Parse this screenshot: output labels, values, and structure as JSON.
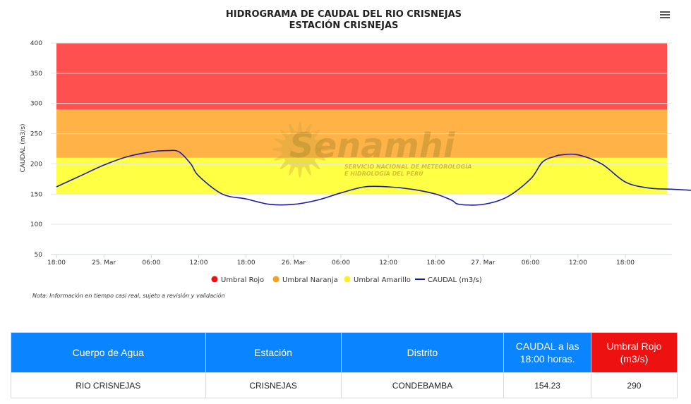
{
  "chart_data": {
    "type": "line",
    "title": "HIDROGRAMA DE CAUDAL DEL RIO CRISNEJAS",
    "subtitle": "ESTACIÓN CRISNEJAS",
    "ylabel": "CAUDAL (m3/s)",
    "xlabel": "",
    "ylim": [
      50,
      400
    ],
    "yticks": [
      50,
      100,
      150,
      200,
      250,
      300,
      350,
      400
    ],
    "x_tick_labels": [
      "18:00",
      "25. Mar",
      "06:00",
      "12:00",
      "18:00",
      "26. Mar",
      "06:00",
      "12:00",
      "18:00",
      "27. Mar",
      "06:00",
      "12:00",
      "18:00"
    ],
    "x_tick_hours": [
      0,
      6,
      12,
      18,
      24,
      30,
      36,
      42,
      48,
      54,
      60,
      66,
      72
    ],
    "xlim_hours": [
      0,
      78
    ],
    "grid": true,
    "legend_position": "bottom",
    "thresholds": [
      {
        "name": "Umbral Rojo",
        "from": 290,
        "to": 400,
        "color": "#ff5050"
      },
      {
        "name": "Umbral Naranja",
        "from": 210,
        "to": 290,
        "color": "#ffb347"
      },
      {
        "name": "Umbral Amarillo",
        "from": 150,
        "to": 210,
        "color": "#ffff44"
      }
    ],
    "legend": [
      {
        "name": "Umbral Rojo",
        "color": "#ee1111"
      },
      {
        "name": "Umbral Naranja",
        "color": "#f5a020"
      },
      {
        "name": "Umbral Amarillo",
        "color": "#ffee22"
      },
      {
        "name": "CAUDAL (m3/s)",
        "color": "#1a1aa8"
      }
    ],
    "series": [
      {
        "name": "CAUDAL (m3/s)",
        "color": "#1a1aa8",
        "x_hours": [
          0,
          3,
          6,
          9,
          12,
          14,
          15.5,
          17,
          18,
          21,
          24,
          27,
          30,
          33,
          36,
          39,
          42,
          45,
          48,
          50,
          51,
          54,
          57,
          60,
          61.5,
          63,
          64,
          66,
          69,
          72
        ],
        "values": [
          162,
          180,
          198,
          212,
          220,
          222,
          220,
          200,
          180,
          150,
          142,
          133,
          133,
          140,
          152,
          162,
          162,
          158,
          150,
          140,
          133,
          133,
          145,
          175,
          203,
          212,
          215,
          215,
          200,
          170
        ]
      }
    ]
  },
  "chart_data_extra": {
    "series_tail_x_hours": [
      75,
      78,
      81,
      84,
      87,
      90
    ],
    "series_tail_values": [
      160,
      158,
      156,
      155,
      154.5,
      154.23
    ]
  },
  "note": "Nota: Información en tiempo casi real, sujeto a revisión y validación",
  "watermark": {
    "brand": "Senamhi",
    "line1": "SERVICIO NACIONAL DE METEOROLOGÍA",
    "line2": "E HIDROLOGÍA DEL PERÚ"
  },
  "menu_icon": "hamburger-menu-icon",
  "table": {
    "headers": [
      "Cuerpo de Agua",
      "Estación",
      "Distrito",
      "CAUDAL a las 18:00 horas.",
      "Umbral Rojo (m3/s)"
    ],
    "row": [
      "RIO CRISNEJAS",
      "CRISNEJAS",
      "CONDEBAMBA",
      "154.23",
      "290"
    ]
  }
}
